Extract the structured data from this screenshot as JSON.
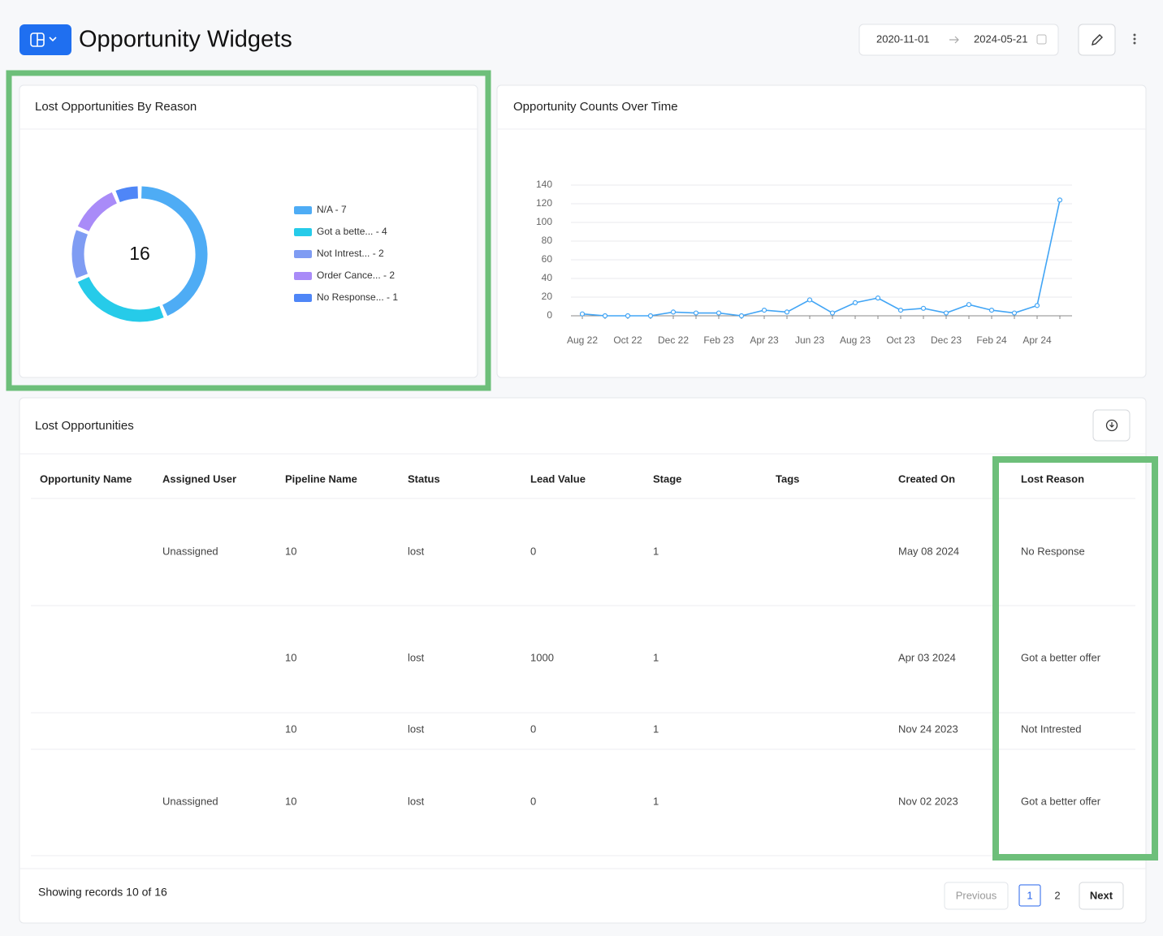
{
  "header": {
    "title": "Opportunity Widgets",
    "date_from": "2020-11-01",
    "date_to": "2024-05-21"
  },
  "chart_data": [
    {
      "type": "donut",
      "title": "Lost Opportunities By Reason",
      "total": 16,
      "categories": [
        "N/A - 7",
        "Got a bette... - 4",
        "Not Intrest... - 2",
        "Order Cance... - 2",
        "No Response... - 1"
      ],
      "values": [
        7,
        4,
        2,
        2,
        1
      ],
      "colors": [
        "#4eacf5",
        "#26cbe9",
        "#7f9cf3",
        "#a98bf8",
        "#4f86f7"
      ]
    },
    {
      "type": "line",
      "title": "Opportunity Counts Over Time",
      "categories": [
        "Aug 22",
        null,
        "Oct 22",
        null,
        "Dec 22",
        null,
        "Feb 23",
        null,
        "Apr 23",
        null,
        "Jun 23",
        null,
        "Aug 23",
        null,
        "Oct 23",
        null,
        "Dec 23",
        null,
        "Feb 24",
        null,
        "Apr 24",
        null
      ],
      "values": [
        2,
        0,
        0,
        0,
        4,
        3,
        3,
        0,
        6,
        4,
        17,
        3,
        14,
        19,
        6,
        8,
        3,
        12,
        6,
        3,
        11,
        124
      ],
      "color": "#42a5f5",
      "ylim": [
        0,
        140
      ],
      "yticks": [
        0,
        20,
        40,
        60,
        80,
        100,
        120,
        140
      ],
      "grid": true
    }
  ],
  "table": {
    "title": "Lost Opportunities",
    "columns": [
      "Opportunity Name",
      "Assigned User",
      "Pipeline Name",
      "Status",
      "Lead Value",
      "Stage",
      "Tags",
      "Created On",
      "Lost Reason"
    ],
    "rows": [
      [
        null,
        "Unassigned",
        "10",
        "lost",
        "0",
        "1",
        null,
        "May 08 2024",
        "No Response"
      ],
      [
        null,
        null,
        "10",
        "lost",
        "1000",
        "1",
        null,
        "Apr 03 2024",
        "Got a better offer"
      ],
      [
        null,
        null,
        "10",
        "lost",
        "0",
        "1",
        null,
        "Nov 24 2023",
        "Not Intrested"
      ],
      [
        null,
        "Unassigned",
        "10",
        "lost",
        "0",
        "1",
        null,
        "Nov 02 2023",
        "Got a better offer"
      ]
    ]
  },
  "footer": {
    "records": "Showing records 10 of 16",
    "previous": "Previous",
    "pages": [
      "1",
      "2"
    ],
    "next": "Next"
  }
}
